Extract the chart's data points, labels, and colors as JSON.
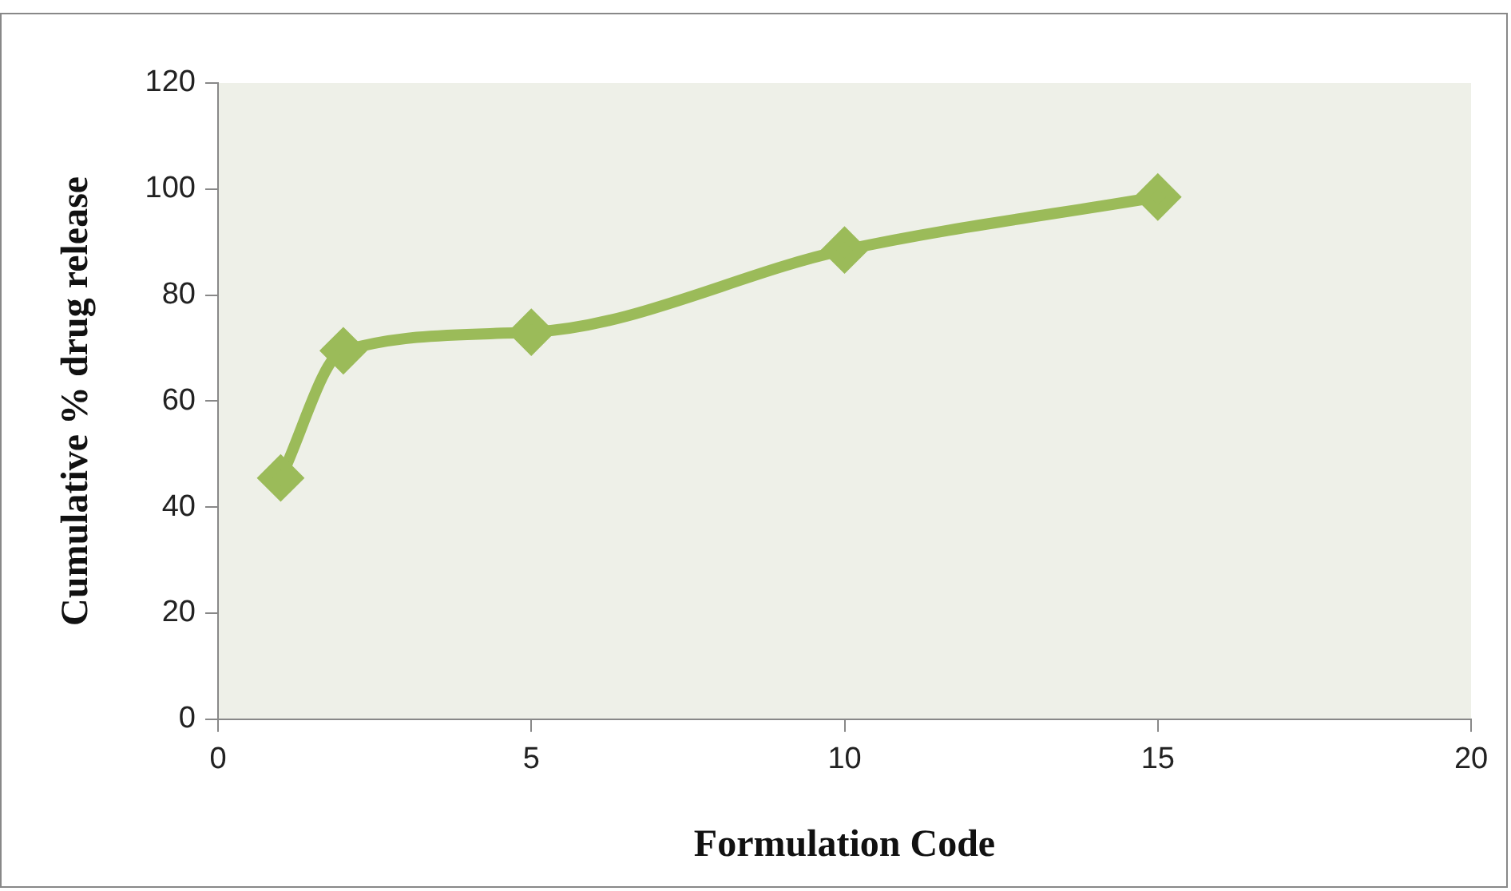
{
  "chart_data": {
    "type": "line",
    "xlabel": "Formulation Code",
    "ylabel": "Cumulative % drug release",
    "x": [
      1,
      2,
      5,
      10,
      15
    ],
    "series": [
      {
        "color": "#9bbb59",
        "values": [
          45.5,
          69.5,
          73,
          88.5,
          98.5
        ]
      }
    ],
    "xlim": [
      0,
      20
    ],
    "xticks": [
      0,
      5,
      10,
      15,
      20
    ],
    "ylim": [
      0,
      120
    ],
    "yticks": [
      0,
      20,
      40,
      60,
      80,
      100,
      120
    ],
    "grid": false,
    "legend": false,
    "marker": "diamond",
    "line_style": "solid"
  }
}
